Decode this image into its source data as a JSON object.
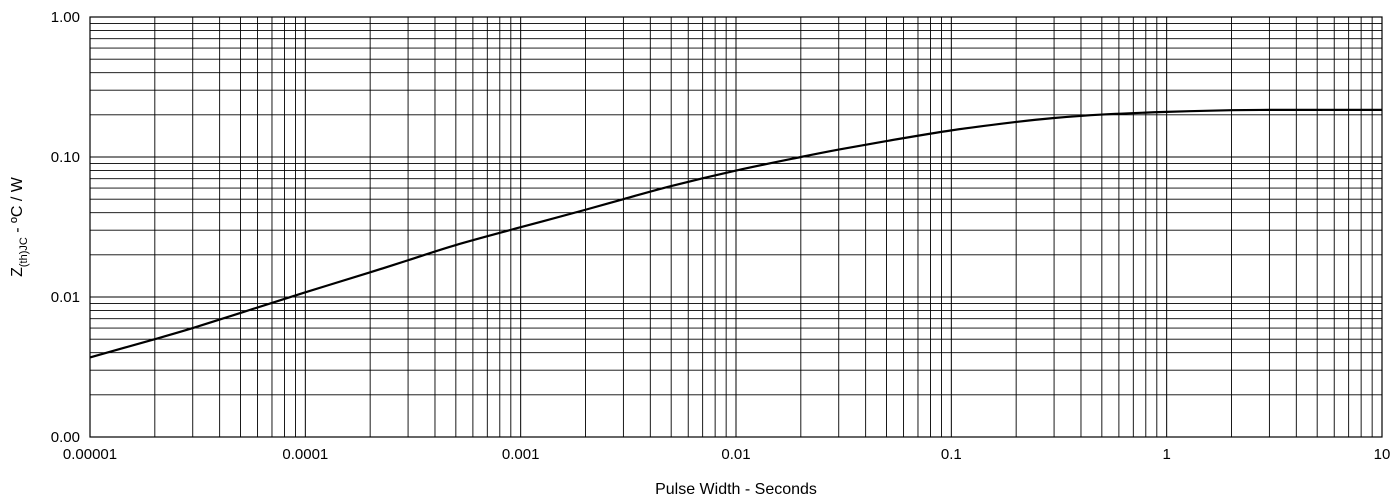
{
  "chart_data": {
    "type": "line",
    "title": "",
    "xlabel": "Pulse Width - Seconds",
    "ylabel_parts": {
      "base": "Z",
      "sub": "(th)JC",
      "rest": " - ºC / W"
    },
    "x_scale": "log",
    "y_scale": "log",
    "xlim": [
      1e-05,
      10
    ],
    "ylim": [
      0.001,
      1
    ],
    "grid": true,
    "x_ticks": [
      {
        "value": 1e-05,
        "label": "0.00001"
      },
      {
        "value": 0.0001,
        "label": "0.0001"
      },
      {
        "value": 0.001,
        "label": "0.001"
      },
      {
        "value": 0.01,
        "label": "0.01"
      },
      {
        "value": 0.1,
        "label": "0.1"
      },
      {
        "value": 1,
        "label": "1"
      },
      {
        "value": 10,
        "label": "10"
      }
    ],
    "y_ticks": [
      {
        "value": 0.001,
        "label": "0.00"
      },
      {
        "value": 0.01,
        "label": "0.01"
      },
      {
        "value": 0.1,
        "label": "0.10"
      },
      {
        "value": 1,
        "label": "1.00"
      }
    ],
    "series": [
      {
        "x": [
          1e-05,
          2e-05,
          3e-05,
          5e-05,
          0.0001,
          0.0002,
          0.0003,
          0.0005,
          0.001,
          0.002,
          0.003,
          0.005,
          0.01,
          0.02,
          0.03,
          0.05,
          0.1,
          0.2,
          0.3,
          0.5,
          1,
          2,
          3,
          5,
          10
        ],
        "y": [
          0.0037,
          0.005,
          0.006,
          0.0077,
          0.0108,
          0.015,
          0.0183,
          0.0235,
          0.0315,
          0.042,
          0.05,
          0.062,
          0.08,
          0.1,
          0.113,
          0.13,
          0.155,
          0.178,
          0.19,
          0.201,
          0.21,
          0.216,
          0.217,
          0.217,
          0.217
        ]
      }
    ]
  }
}
